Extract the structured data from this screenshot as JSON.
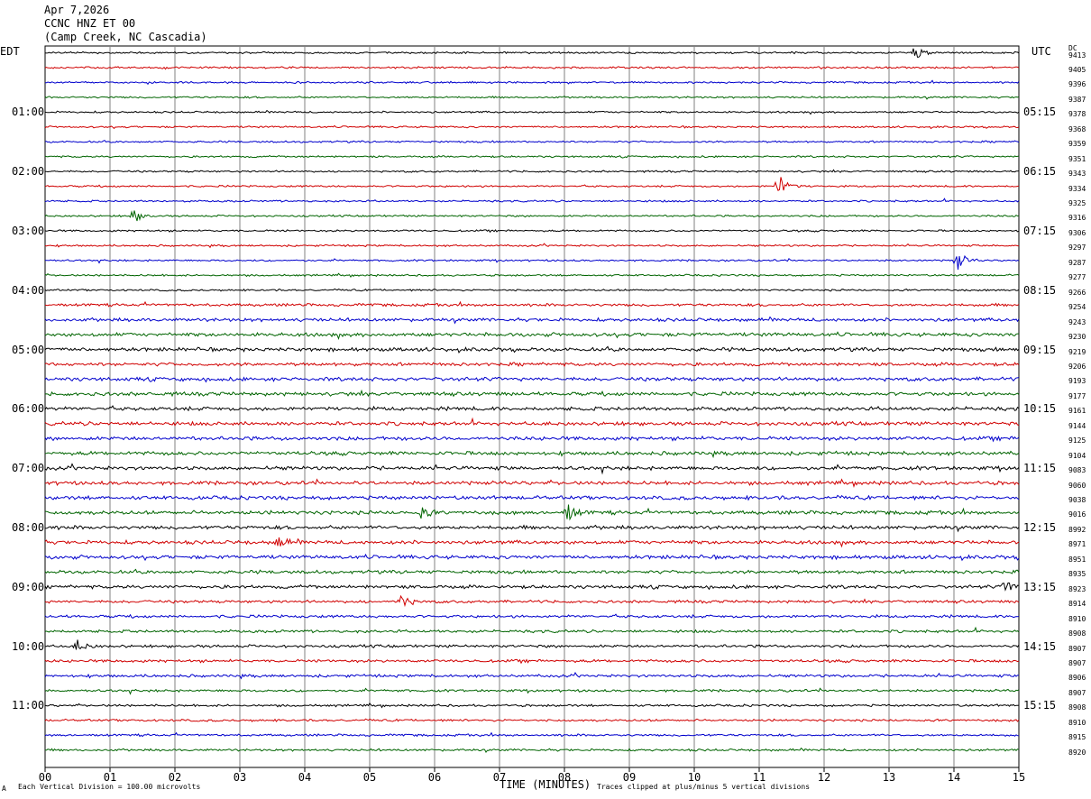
{
  "header": {
    "date": "Apr 7,2026",
    "station": "CCNC HNZ ET 00",
    "location": "(Camp Creek, NC Cascadia)"
  },
  "left_tz": "EDT",
  "right_tz": "UTC",
  "dc_label": "DC",
  "footer": {
    "scale_note": "Each Vertical Division =  100.00 microvolts",
    "clip_note": "Traces clipped at plus/minus 5 vertical divisions",
    "corner_mark": "A"
  },
  "chart_data": {
    "type": "line",
    "xlabel": "TIME (MINUTES)",
    "xlim": [
      0,
      15
    ],
    "x_ticks": [
      "00",
      "01",
      "02",
      "03",
      "04",
      "05",
      "06",
      "07",
      "08",
      "09",
      "10",
      "11",
      "12",
      "13",
      "14",
      "15"
    ],
    "left_hour_labels": [
      "01:00",
      "02:00",
      "03:00",
      "04:00",
      "05:00",
      "06:00",
      "07:00",
      "08:00",
      "09:00",
      "10:00",
      "11:00"
    ],
    "right_hour_labels": [
      "05:15",
      "06:15",
      "07:15",
      "08:15",
      "09:15",
      "10:15",
      "11:15",
      "12:15",
      "13:15",
      "14:15",
      "15:15"
    ],
    "trace_colors": [
      "#000000",
      "#d00000",
      "#0000cc",
      "#006400"
    ],
    "dc_offsets": [
      "9413",
      "9405",
      "9396",
      "9387",
      "9378",
      "9368",
      "9359",
      "9351",
      "9343",
      "9334",
      "9325",
      "9316",
      "9306",
      "9297",
      "9287",
      "9277",
      "9266",
      "9254",
      "9243",
      "9230",
      "9219",
      "9206",
      "9193",
      "9177",
      "9161",
      "9144",
      "9125",
      "9104",
      "9083",
      "9060",
      "9038",
      "9016",
      "8992",
      "8971",
      "8951",
      "8935",
      "8923",
      "8914",
      "8910",
      "8908",
      "8907",
      "8907",
      "8906",
      "8907",
      "8908",
      "8910",
      "8915",
      "8920"
    ],
    "noise_levels": [
      1,
      1,
      1,
      1,
      1,
      1,
      1,
      1,
      1,
      1,
      1,
      1,
      1,
      1,
      1,
      1,
      1,
      1.5,
      1.8,
      2,
      2,
      1.8,
      2,
      2,
      2,
      2,
      2,
      2,
      2,
      2,
      2,
      2,
      2,
      2,
      2,
      1.8,
      1.8,
      1.5,
      1.5,
      1.5,
      1.5,
      1.5,
      1.5,
      1.3,
      1.2,
      1.2,
      1.2,
      1.2
    ],
    "events": [
      {
        "trace": 0,
        "minute": 13.4,
        "amplitude": 8
      },
      {
        "trace": 9,
        "minute": 11.3,
        "amplitude": 14
      },
      {
        "trace": 11,
        "minute": 1.35,
        "amplitude": 9
      },
      {
        "trace": 14,
        "minute": 14.05,
        "amplitude": 12
      },
      {
        "trace": 31,
        "minute": 8.05,
        "amplitude": 10
      },
      {
        "trace": 31,
        "minute": 5.8,
        "amplitude": 6
      },
      {
        "trace": 33,
        "minute": 3.6,
        "amplitude": 6
      },
      {
        "trace": 36,
        "minute": 14.8,
        "amplitude": 9
      },
      {
        "trace": 37,
        "minute": 5.5,
        "amplitude": 9
      },
      {
        "trace": 40,
        "minute": 0.5,
        "amplitude": 7
      }
    ]
  }
}
